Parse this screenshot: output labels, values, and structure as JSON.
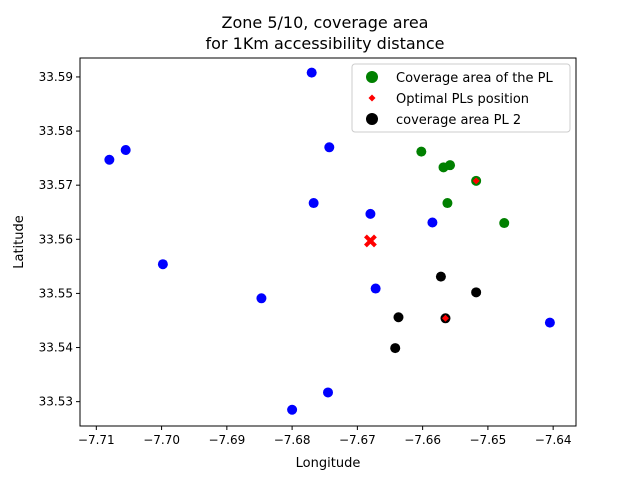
{
  "chart_data": {
    "type": "scatter",
    "title_line1": "Zone 5/10, coverage area",
    "title_line2": "for 1Km accessibility distance",
    "xlabel": "Longitude",
    "ylabel": "Latitude",
    "xlim": [
      -7.7125,
      -7.6365
    ],
    "ylim": [
      33.5255,
      33.5935
    ],
    "xticks": [
      -7.71,
      -7.7,
      -7.69,
      -7.68,
      -7.67,
      -7.66,
      -7.65,
      -7.64
    ],
    "xtick_labels": [
      "−7.71",
      "−7.70",
      "−7.69",
      "−7.68",
      "−7.67",
      "−7.66",
      "−7.65",
      "−7.64"
    ],
    "yticks": [
      33.53,
      33.54,
      33.55,
      33.56,
      33.57,
      33.58,
      33.59
    ],
    "ytick_labels": [
      "33.53",
      "33.54",
      "33.55",
      "33.56",
      "33.57",
      "33.58",
      "33.59"
    ],
    "legend_position": "top-right",
    "series": [
      {
        "key": "blue",
        "color": "#0000ff",
        "marker": "circle",
        "points": [
          [
            -7.677,
            33.5908
          ],
          [
            -7.7055,
            33.5765
          ],
          [
            -7.708,
            33.5747
          ],
          [
            -7.6743,
            33.577
          ],
          [
            -7.6767,
            33.5667
          ],
          [
            -7.668,
            33.5647
          ],
          [
            -7.6585,
            33.5631
          ],
          [
            -7.6998,
            33.5554
          ],
          [
            -7.6847,
            33.5491
          ],
          [
            -7.6672,
            33.5509
          ],
          [
            -7.6405,
            33.5446
          ],
          [
            -7.6745,
            33.5317
          ],
          [
            -7.68,
            33.5285
          ]
        ]
      },
      {
        "key": "green",
        "name": "Coverage area of the PL",
        "color": "#008000",
        "marker": "circle",
        "points": [
          [
            -7.6602,
            33.5762
          ],
          [
            -7.6568,
            33.5733
          ],
          [
            -7.6558,
            33.5737
          ],
          [
            -7.6518,
            33.5708
          ],
          [
            -7.6562,
            33.5667
          ],
          [
            -7.6475,
            33.563
          ]
        ]
      },
      {
        "key": "black",
        "name": "coverage area PL 2",
        "color": "#000000",
        "marker": "circle",
        "points": [
          [
            -7.6572,
            33.5531
          ],
          [
            -7.6518,
            33.5502
          ],
          [
            -7.6637,
            33.5456
          ],
          [
            -7.6565,
            33.5454
          ],
          [
            -7.6642,
            33.5399
          ]
        ]
      },
      {
        "key": "red-diamond",
        "name": "Optimal PLs position",
        "color": "#ff0000",
        "marker": "diamond",
        "points": [
          [
            -7.6518,
            33.5708
          ],
          [
            -7.6565,
            33.5454
          ]
        ]
      },
      {
        "key": "red-x",
        "color": "#ff0000",
        "marker": "x",
        "points": [
          [
            -7.668,
            33.5597
          ]
        ]
      }
    ],
    "legend": [
      {
        "label": "Coverage area of the PL",
        "color": "#008000",
        "marker": "circle"
      },
      {
        "label": "Optimal PLs position",
        "color": "#ff0000",
        "marker": "diamond"
      },
      {
        "label": "coverage area PL 2",
        "color": "#000000",
        "marker": "circle"
      }
    ]
  }
}
